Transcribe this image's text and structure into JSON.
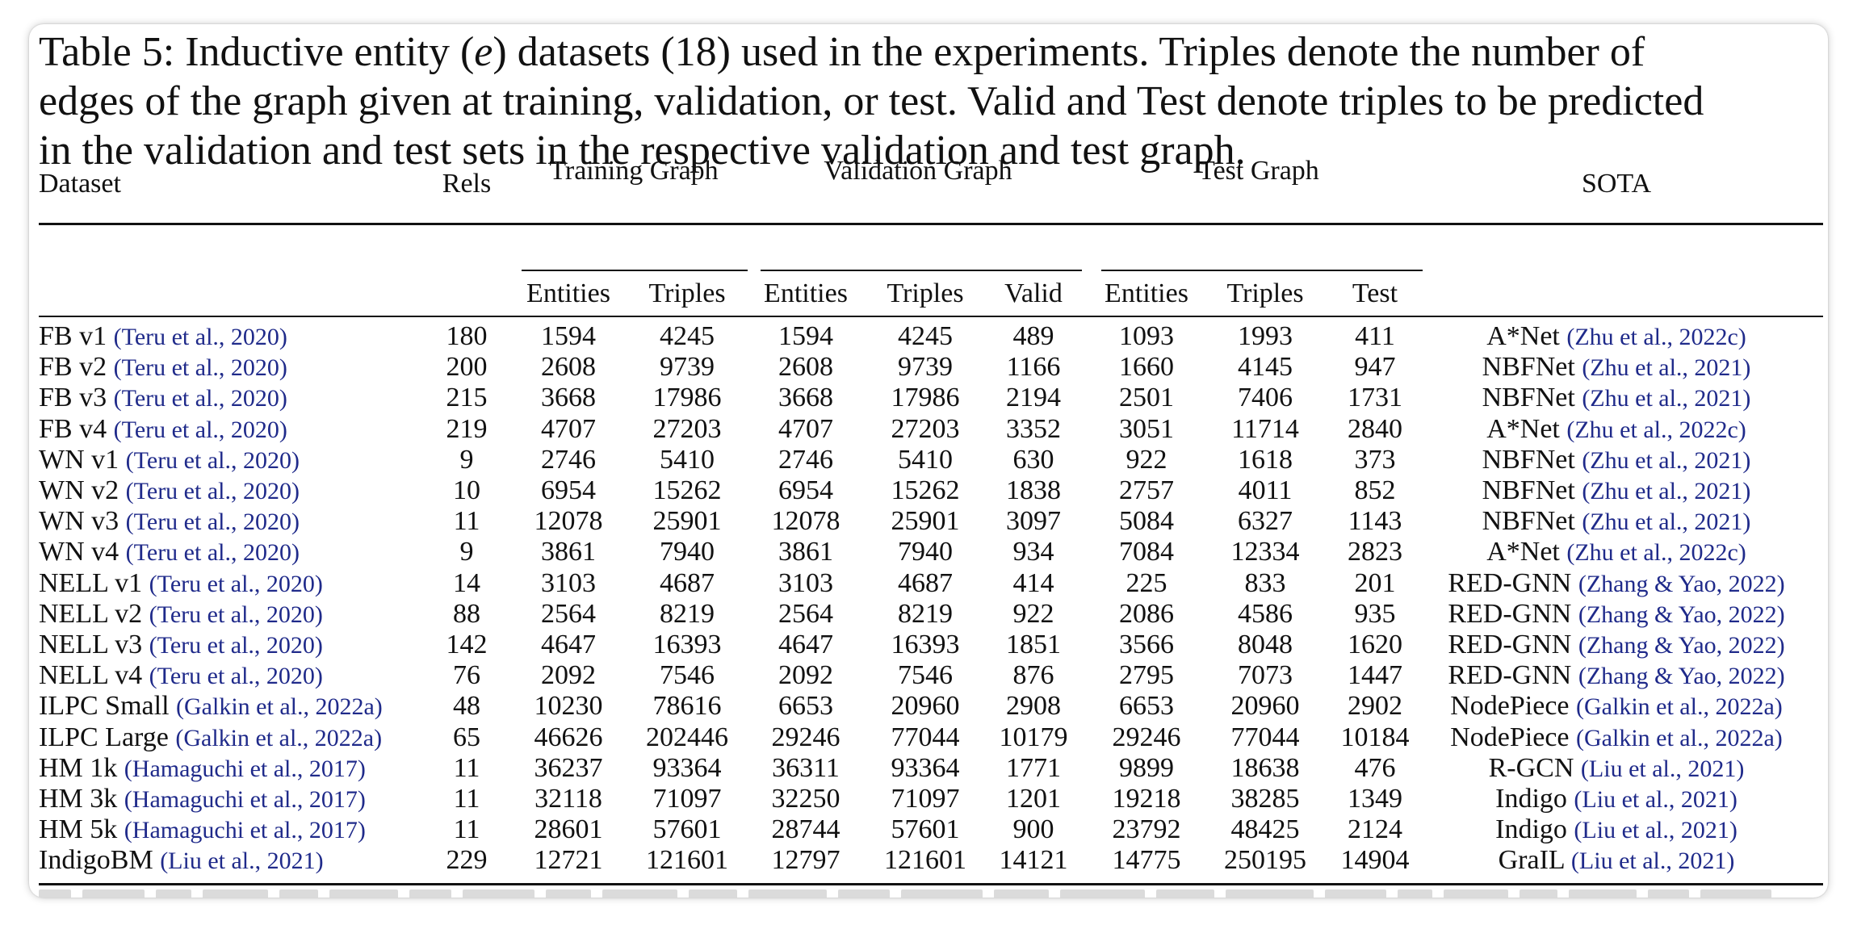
{
  "caption": {
    "line1_pre": "Table 5: Inductive entity (",
    "line1_var": "e",
    "line1_post": ") datasets (18) used in the experiments. Triples denote the number of",
    "line2": "edges of the graph given at training, validation, or test. Valid and Test denote triples to be predicted",
    "line3": "in the validation and test sets in the respective validation and test graph."
  },
  "headers": {
    "dataset": "Dataset",
    "rels": "Rels",
    "training_graph": "Training Graph",
    "validation_graph": "Validation Graph",
    "test_graph": "Test Graph",
    "sota": "SOTA",
    "train_entities": "Entities",
    "train_triples": "Triples",
    "val_entities": "Entities",
    "val_triples": "Triples",
    "val_valid": "Valid",
    "test_entities": "Entities",
    "test_triples": "Triples",
    "test_test": "Test"
  },
  "rows": [
    {
      "name": "FB v1",
      "cite": "(Teru et al., 2020)",
      "rels": "180",
      "tr_ent": "1594",
      "tr_tri": "4245",
      "va_ent": "1594",
      "va_tri": "4245",
      "valid": "489",
      "te_ent": "1093",
      "te_tri": "1993",
      "test": "411",
      "sota": "A*Net",
      "sota_cite": "(Zhu et al., 2022c)"
    },
    {
      "name": "FB v2",
      "cite": "(Teru et al., 2020)",
      "rels": "200",
      "tr_ent": "2608",
      "tr_tri": "9739",
      "va_ent": "2608",
      "va_tri": "9739",
      "valid": "1166",
      "te_ent": "1660",
      "te_tri": "4145",
      "test": "947",
      "sota": "NBFNet",
      "sota_cite": "(Zhu et al., 2021)"
    },
    {
      "name": "FB v3",
      "cite": "(Teru et al., 2020)",
      "rels": "215",
      "tr_ent": "3668",
      "tr_tri": "17986",
      "va_ent": "3668",
      "va_tri": "17986",
      "valid": "2194",
      "te_ent": "2501",
      "te_tri": "7406",
      "test": "1731",
      "sota": "NBFNet",
      "sota_cite": "(Zhu et al., 2021)"
    },
    {
      "name": "FB v4",
      "cite": "(Teru et al., 2020)",
      "rels": "219",
      "tr_ent": "4707",
      "tr_tri": "27203",
      "va_ent": "4707",
      "va_tri": "27203",
      "valid": "3352",
      "te_ent": "3051",
      "te_tri": "11714",
      "test": "2840",
      "sota": "A*Net",
      "sota_cite": "(Zhu et al., 2022c)"
    },
    {
      "name": "WN v1",
      "cite": "(Teru et al., 2020)",
      "rels": "9",
      "tr_ent": "2746",
      "tr_tri": "5410",
      "va_ent": "2746",
      "va_tri": "5410",
      "valid": "630",
      "te_ent": "922",
      "te_tri": "1618",
      "test": "373",
      "sota": "NBFNet",
      "sota_cite": "(Zhu et al., 2021)"
    },
    {
      "name": "WN v2",
      "cite": "(Teru et al., 2020)",
      "rels": "10",
      "tr_ent": "6954",
      "tr_tri": "15262",
      "va_ent": "6954",
      "va_tri": "15262",
      "valid": "1838",
      "te_ent": "2757",
      "te_tri": "4011",
      "test": "852",
      "sota": "NBFNet",
      "sota_cite": "(Zhu et al., 2021)"
    },
    {
      "name": "WN v3",
      "cite": "(Teru et al., 2020)",
      "rels": "11",
      "tr_ent": "12078",
      "tr_tri": "25901",
      "va_ent": "12078",
      "va_tri": "25901",
      "valid": "3097",
      "te_ent": "5084",
      "te_tri": "6327",
      "test": "1143",
      "sota": "NBFNet",
      "sota_cite": "(Zhu et al., 2021)"
    },
    {
      "name": "WN v4",
      "cite": "(Teru et al., 2020)",
      "rels": "9",
      "tr_ent": "3861",
      "tr_tri": "7940",
      "va_ent": "3861",
      "va_tri": "7940",
      "valid": "934",
      "te_ent": "7084",
      "te_tri": "12334",
      "test": "2823",
      "sota": "A*Net",
      "sota_cite": "(Zhu et al., 2022c)"
    },
    {
      "name": "NELL v1",
      "cite": "(Teru et al., 2020)",
      "rels": "14",
      "tr_ent": "3103",
      "tr_tri": "4687",
      "va_ent": "3103",
      "va_tri": "4687",
      "valid": "414",
      "te_ent": "225",
      "te_tri": "833",
      "test": "201",
      "sota": "RED-GNN",
      "sota_cite": "(Zhang & Yao, 2022)"
    },
    {
      "name": "NELL v2",
      "cite": "(Teru et al., 2020)",
      "rels": "88",
      "tr_ent": "2564",
      "tr_tri": "8219",
      "va_ent": "2564",
      "va_tri": "8219",
      "valid": "922",
      "te_ent": "2086",
      "te_tri": "4586",
      "test": "935",
      "sota": "RED-GNN",
      "sota_cite": "(Zhang & Yao, 2022)"
    },
    {
      "name": "NELL v3",
      "cite": "(Teru et al., 2020)",
      "rels": "142",
      "tr_ent": "4647",
      "tr_tri": "16393",
      "va_ent": "4647",
      "va_tri": "16393",
      "valid": "1851",
      "te_ent": "3566",
      "te_tri": "8048",
      "test": "1620",
      "sota": "RED-GNN",
      "sota_cite": "(Zhang & Yao, 2022)"
    },
    {
      "name": "NELL v4",
      "cite": "(Teru et al., 2020)",
      "rels": "76",
      "tr_ent": "2092",
      "tr_tri": "7546",
      "va_ent": "2092",
      "va_tri": "7546",
      "valid": "876",
      "te_ent": "2795",
      "te_tri": "7073",
      "test": "1447",
      "sota": "RED-GNN",
      "sota_cite": "(Zhang & Yao, 2022)"
    },
    {
      "name": "ILPC Small",
      "cite": "(Galkin et al., 2022a)",
      "rels": "48",
      "tr_ent": "10230",
      "tr_tri": "78616",
      "va_ent": "6653",
      "va_tri": "20960",
      "valid": "2908",
      "te_ent": "6653",
      "te_tri": "20960",
      "test": "2902",
      "sota": "NodePiece",
      "sota_cite": "(Galkin et al., 2022a)"
    },
    {
      "name": "ILPC Large",
      "cite": "(Galkin et al., 2022a)",
      "rels": "65",
      "tr_ent": "46626",
      "tr_tri": "202446",
      "va_ent": "29246",
      "va_tri": "77044",
      "valid": "10179",
      "te_ent": "29246",
      "te_tri": "77044",
      "test": "10184",
      "sota": "NodePiece",
      "sota_cite": "(Galkin et al., 2022a)"
    },
    {
      "name": "HM 1k",
      "cite": "(Hamaguchi et al., 2017)",
      "rels": "11",
      "tr_ent": "36237",
      "tr_tri": "93364",
      "va_ent": "36311",
      "va_tri": "93364",
      "valid": "1771",
      "te_ent": "9899",
      "te_tri": "18638",
      "test": "476",
      "sota": "R-GCN",
      "sota_cite": "(Liu et al., 2021)"
    },
    {
      "name": "HM 3k",
      "cite": "(Hamaguchi et al., 2017)",
      "rels": "11",
      "tr_ent": "32118",
      "tr_tri": "71097",
      "va_ent": "32250",
      "va_tri": "71097",
      "valid": "1201",
      "te_ent": "19218",
      "te_tri": "38285",
      "test": "1349",
      "sota": "Indigo",
      "sota_cite": "(Liu et al., 2021)"
    },
    {
      "name": "HM 5k",
      "cite": "(Hamaguchi et al., 2017)",
      "rels": "11",
      "tr_ent": "28601",
      "tr_tri": "57601",
      "va_ent": "28744",
      "va_tri": "57601",
      "valid": "900",
      "te_ent": "23792",
      "te_tri": "48425",
      "test": "2124",
      "sota": "Indigo",
      "sota_cite": "(Liu et al., 2021)"
    },
    {
      "name": "IndigoBM",
      "cite": "(Liu et al., 2021)",
      "rels": "229",
      "tr_ent": "12721",
      "tr_tri": "121601",
      "va_ent": "12797",
      "va_tri": "121601",
      "valid": "14121",
      "te_ent": "14775",
      "te_tri": "250195",
      "test": "14904",
      "sota": "GraIL",
      "sota_cite": "(Liu et al., 2021)"
    }
  ],
  "colors": {
    "citation": "#1f2a8a",
    "text": "#111111"
  }
}
